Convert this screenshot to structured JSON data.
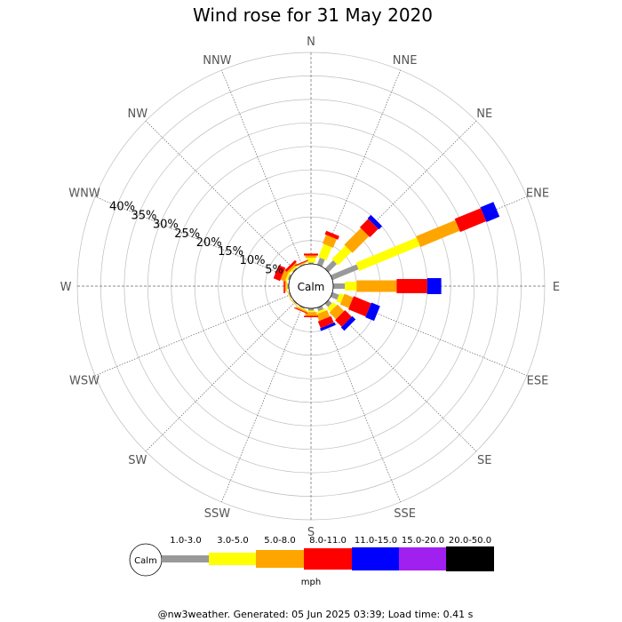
{
  "chart_data": {
    "type": "wind-rose",
    "title": "Wind rose for 31 May 2020",
    "directions": [
      "N",
      "NNE",
      "NE",
      "ENE",
      "E",
      "ESE",
      "SE",
      "SSE",
      "S",
      "SSW",
      "SW",
      "WSW",
      "W",
      "WNW",
      "NW",
      "NNW"
    ],
    "ring_labels": [
      "5%",
      "10%",
      "15%",
      "20%",
      "25%",
      "30%",
      "35%",
      "40%"
    ],
    "r_max": 45,
    "calm_label": "Calm",
    "speed_bins": [
      "1.0-3.0",
      "3.0-5.0",
      "5.0-8.0",
      "8.0-11.0",
      "11.0-15.0",
      "15.0-20.0",
      "20.0-50.0"
    ],
    "bin_colors": [
      "#999999",
      "#ffff00",
      "#ffa500",
      "#ff0000",
      "#0000ff",
      "#a020f0",
      "#000000"
    ],
    "unit": "mph",
    "series": [
      {
        "direction": "N",
        "values": [
          0.3,
          1.0,
          0.5,
          0.4,
          0,
          0,
          0
        ]
      },
      {
        "direction": "NNE",
        "values": [
          1.6,
          3.0,
          2.0,
          0.8,
          0,
          0,
          0
        ]
      },
      {
        "direction": "NE",
        "values": [
          2.5,
          4.0,
          5.0,
          2.5,
          1.0,
          0,
          0
        ]
      },
      {
        "direction": "ENE",
        "values": [
          6.0,
          14.0,
          9.0,
          6.0,
          3.0,
          0,
          0
        ]
      },
      {
        "direction": "E",
        "values": [
          2.5,
          2.5,
          8.5,
          6.5,
          3.0,
          0,
          0
        ]
      },
      {
        "direction": "ESE",
        "values": [
          1.5,
          1.0,
          2.0,
          4.0,
          2.0,
          0,
          0
        ]
      },
      {
        "direction": "SE",
        "values": [
          1.0,
          1.0,
          2.0,
          2.0,
          1.0,
          0,
          0
        ]
      },
      {
        "direction": "SSE",
        "values": [
          0.8,
          0.5,
          1.5,
          1.5,
          0.6,
          0,
          0
        ]
      },
      {
        "direction": "S",
        "values": [
          0.5,
          0.3,
          0.8,
          0.3,
          0,
          0,
          0
        ]
      },
      {
        "direction": "SSW",
        "values": [
          0.3,
          0.2,
          0.3,
          0.2,
          0,
          0,
          0
        ]
      },
      {
        "direction": "SW",
        "values": [
          0.2,
          0.1,
          0.1,
          0,
          0,
          0,
          0
        ]
      },
      {
        "direction": "WSW",
        "values": [
          0.2,
          0.1,
          0.1,
          0,
          0,
          0,
          0
        ]
      },
      {
        "direction": "W",
        "values": [
          0.3,
          0.2,
          0.3,
          0.3,
          0,
          0,
          0
        ]
      },
      {
        "direction": "WNW",
        "values": [
          0.4,
          0.4,
          1.0,
          1.5,
          0,
          0,
          0
        ]
      },
      {
        "direction": "NW",
        "values": [
          0.3,
          0.3,
          0.5,
          0.5,
          0,
          0,
          0
        ]
      },
      {
        "direction": "NNW",
        "values": [
          0.2,
          0.1,
          0.2,
          0.2,
          0,
          0,
          0
        ]
      }
    ]
  },
  "footer": "@nw3weather. Generated: 05 Jun 2025 03:39; Load time: 0.41 s"
}
